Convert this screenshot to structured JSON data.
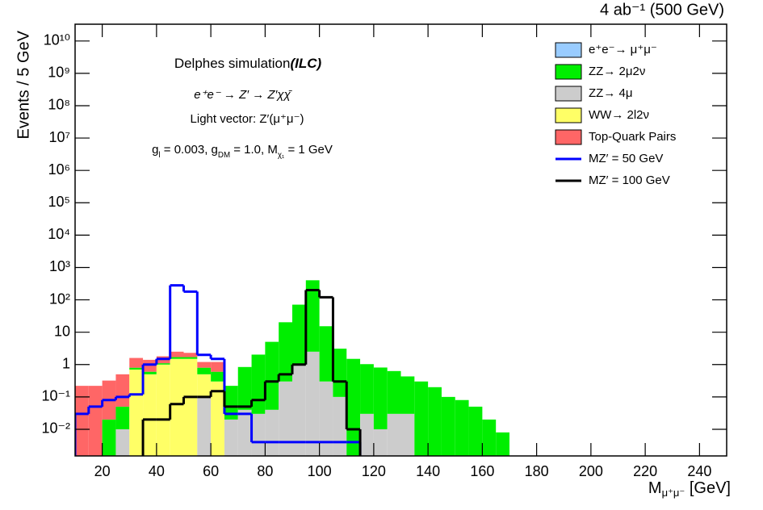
{
  "chart_data": {
    "type": "stacked_histogram",
    "title": "4 ab⁻¹ (500 GeV)",
    "y_label": "Events / 5 GeV",
    "x_label": [
      "M",
      "μ⁺μ⁻",
      " [GeV]"
    ],
    "annotations": {
      "sim": "Delphes simulation",
      "collider": "(ILC)",
      "process": "e⁺e⁻ → Z′ → Z′χχ̄",
      "model": "Light vector: Z′(μ⁺μ⁻)",
      "couplings": [
        "g",
        "l",
        " = 0.003, g",
        "DM",
        " = 1.0, M",
        "χ₁",
        " = 1 GeV"
      ]
    },
    "log_y": true,
    "xlim": [
      10,
      250
    ],
    "ylim": [
      0.0015,
      33000000000
    ],
    "xticks": [
      20,
      40,
      60,
      80,
      100,
      120,
      140,
      160,
      180,
      200,
      220,
      240
    ],
    "yticks": [
      {
        "value": 0.01,
        "label": "10⁻²"
      },
      {
        "value": 0.1,
        "label": "10⁻¹"
      },
      1,
      10,
      {
        "value": 100,
        "label": "10²"
      },
      {
        "value": 1000,
        "label": "10³"
      },
      {
        "value": 10000,
        "label": "10⁴"
      },
      {
        "value": 100000,
        "label": "10⁵"
      },
      {
        "value": 1000000,
        "label": "10⁶"
      },
      {
        "value": 10000000,
        "label": "10⁷"
      },
      {
        "value": 100000000,
        "label": "10⁸"
      },
      {
        "value": 1000000000,
        "label": "10⁹"
      },
      {
        "value": 10000000000,
        "label": "10¹⁰"
      }
    ],
    "bins": [
      10,
      15,
      20,
      25,
      30,
      35,
      40,
      45,
      50,
      55,
      60,
      65,
      70,
      75,
      80,
      85,
      90,
      95,
      100,
      105,
      110,
      115,
      120,
      125,
      130,
      135,
      140,
      145,
      150,
      155,
      160,
      165,
      170
    ],
    "legend": "top-right",
    "stack_order": [
      2,
      3,
      1,
      4,
      0
    ],
    "series": [
      {
        "name": "e⁺e⁻→ μ⁺μ⁻",
        "color": "#99ccff",
        "values": [
          0,
          0,
          0,
          0,
          0,
          0,
          0,
          0,
          0,
          0,
          0,
          0,
          0,
          0,
          0,
          0,
          0,
          0,
          0,
          0,
          0,
          0,
          0,
          0,
          0,
          0,
          0,
          0,
          0,
          0,
          0,
          0
        ]
      },
      {
        "name": "ZZ→ 2μ2ν",
        "color": "#00ee00",
        "values": [
          0,
          0,
          0.02,
          0.04,
          0.1,
          0.1,
          0.1,
          0.2,
          0.2,
          0.3,
          0.3,
          0.2,
          0.8,
          2,
          5,
          20,
          70,
          400,
          15,
          3,
          1.5,
          1,
          0.8,
          0.6,
          0.4,
          0.3,
          0.2,
          0.1,
          0.08,
          0.05,
          0.02,
          0.008
        ]
      },
      {
        "name": "ZZ→ 4μ",
        "color": "#cccccc",
        "values": [
          0,
          0,
          0,
          0.01,
          0,
          0,
          0,
          0,
          0,
          0.1,
          0,
          0.02,
          0.04,
          0.03,
          0.04,
          0.3,
          1,
          2.5,
          0.3,
          0.1,
          0,
          0.03,
          0.01,
          0.03,
          0.03,
          0,
          0,
          0,
          0,
          0,
          0,
          0
        ]
      },
      {
        "name": "WW→ 2l2ν",
        "color": "#ffff66",
        "values": [
          0,
          0,
          0,
          0,
          0.7,
          0.5,
          1,
          1.5,
          1.5,
          0.4,
          0.3,
          0,
          0,
          0,
          0,
          0,
          0,
          0,
          0,
          0,
          0,
          0,
          0,
          0,
          0,
          0,
          0,
          0,
          0,
          0,
          0,
          0
        ]
      },
      {
        "name": "Top-Quark Pairs",
        "color": "#ff6666",
        "values": [
          0.22,
          0.22,
          0.3,
          0.45,
          0.8,
          0.8,
          0.7,
          0.8,
          0.6,
          0.4,
          0.6,
          0,
          0,
          0,
          0,
          0,
          0,
          0,
          0,
          0,
          0,
          0,
          0,
          0,
          0,
          0,
          0,
          0,
          0,
          0,
          0,
          0
        ]
      },
      {
        "name": "MZ′ = 50 GeV",
        "color": "#0000ff",
        "line": true,
        "values": [
          0.03,
          0.05,
          0.08,
          0.1,
          0.12,
          1,
          1.5,
          280,
          180,
          2,
          1.5,
          0.03,
          0.03,
          0.004,
          0.004,
          0.004,
          0.004,
          0.004,
          0.004,
          0.004,
          0.004,
          null,
          null,
          null,
          null,
          null,
          null,
          null,
          null,
          null,
          null,
          null
        ]
      },
      {
        "name": "MZ′ = 100 GeV",
        "color": "#000000",
        "line": true,
        "values": [
          null,
          null,
          null,
          null,
          null,
          0.02,
          0.02,
          0.06,
          0.1,
          0.1,
          0.15,
          0.05,
          0.05,
          0.08,
          0.3,
          0.5,
          1,
          200,
          120,
          0.3,
          0.01,
          null,
          null,
          null,
          null,
          null,
          null,
          null,
          null,
          null,
          null,
          null
        ]
      }
    ]
  }
}
